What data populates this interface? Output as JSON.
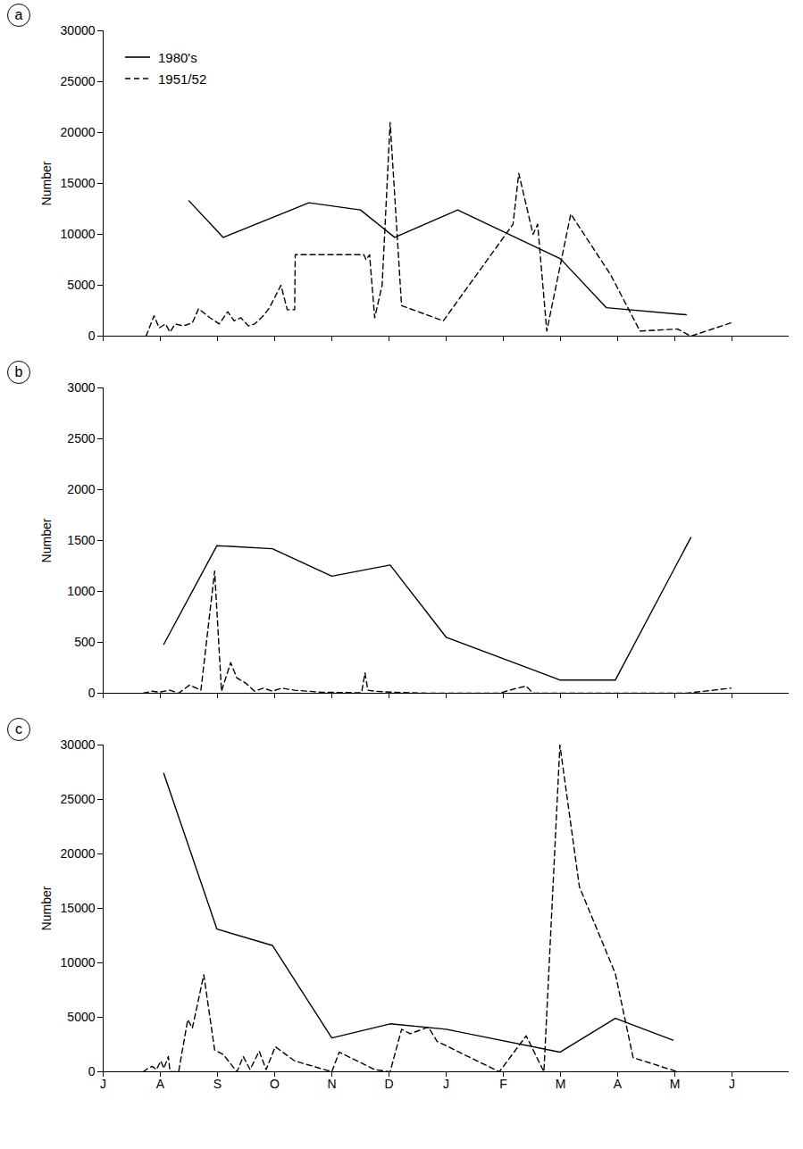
{
  "chart_data": [
    {
      "type": "line",
      "title": "a",
      "y_label": "Number",
      "legend": "upper left",
      "tick_labels": "y",
      "xlim": [
        0,
        12
      ],
      "xticks": [
        0,
        1,
        2,
        3,
        4,
        5,
        6,
        7,
        8,
        9,
        10,
        11
      ],
      "ylim": [
        0,
        30000
      ],
      "yticks": [
        0,
        5000,
        10000,
        15000,
        20000,
        25000,
        30000
      ],
      "series": [
        {
          "name": "1980's",
          "color": "#000000",
          "line_style": "solid",
          "x": [
            1.5,
            2.1,
            3.6,
            4.5,
            5.1,
            6.2,
            8.0,
            8.8,
            10.2
          ],
          "values": [
            13300,
            9700,
            13100,
            12400,
            9700,
            12400,
            7600,
            2800,
            2100
          ]
        },
        {
          "name": "1951/52",
          "color": "#000000",
          "line_style": "dashed",
          "x": [
            0.75,
            0.89,
            0.98,
            1.09,
            1.17,
            1.26,
            1.4,
            1.56,
            1.67,
            1.87,
            2.03,
            2.18,
            2.29,
            2.41,
            2.54,
            2.65,
            2.8,
            2.91,
            3.11,
            3.22,
            3.35,
            3.36,
            4.56,
            4.6,
            4.66,
            4.75,
            4.88,
            5.02,
            5.22,
            5.95,
            7.17,
            7.27,
            7.52,
            7.6,
            7.76,
            7.87,
            8.18,
            8.88,
            9.39,
            10.05,
            10.28,
            10.98
          ],
          "values": [
            0,
            2000,
            800,
            1200,
            400,
            1200,
            1000,
            1300,
            2700,
            1800,
            1200,
            2400,
            1500,
            1800,
            1000,
            1200,
            2000,
            2800,
            5000,
            2600,
            2600,
            8000,
            8000,
            7500,
            8000,
            1800,
            5000,
            21000,
            3000,
            1500,
            11000,
            16000,
            10000,
            11000,
            500,
            3500,
            12000,
            6000,
            500,
            700,
            0,
            1300
          ]
        }
      ]
    },
    {
      "type": "line",
      "title": "b",
      "y_label": "Number",
      "tick_labels": "y",
      "xlim": [
        0,
        12
      ],
      "xticks": [
        0,
        1,
        2,
        3,
        4,
        5,
        6,
        7,
        8,
        9,
        10,
        11
      ],
      "ylim": [
        0,
        3000
      ],
      "yticks": [
        0,
        500,
        1000,
        1500,
        2000,
        2500,
        3000
      ],
      "series": [
        {
          "name": "1980's",
          "color": "#000000",
          "line_style": "solid",
          "x": [
            1.06,
            1.99,
            2.96,
            4.0,
            5.02,
            6.0,
            7.99,
            8.96,
            10.28
          ],
          "values": [
            480,
            1450,
            1420,
            1150,
            1260,
            550,
            130,
            130,
            1530
          ]
        },
        {
          "name": "1951/52",
          "color": "#000000",
          "line_style": "dashed",
          "x": [
            0.7,
            0.86,
            0.98,
            1.17,
            1.32,
            1.51,
            1.71,
            1.95,
            2.07,
            2.23,
            2.34,
            2.49,
            2.65,
            2.8,
            2.96,
            3.12,
            3.35,
            3.82,
            4.52,
            4.58,
            4.63,
            4.75,
            5.06,
            5.69,
            6.93,
            7.24,
            7.4,
            7.52,
            10.2,
            10.67,
            10.98
          ],
          "values": [
            0,
            20,
            10,
            30,
            0,
            80,
            30,
            1200,
            20,
            300,
            150,
            100,
            20,
            50,
            20,
            50,
            30,
            10,
            5,
            200,
            30,
            20,
            10,
            0,
            0,
            50,
            70,
            0,
            0,
            30,
            50
          ]
        }
      ]
    },
    {
      "type": "line",
      "title": "c",
      "y_label": "Number",
      "xlim": [
        0,
        12
      ],
      "xticks": [
        {
          "value": 0,
          "label": "J"
        },
        {
          "value": 1,
          "label": "A"
        },
        {
          "value": 2,
          "label": "S"
        },
        {
          "value": 3,
          "label": "O"
        },
        {
          "value": 4,
          "label": "N"
        },
        {
          "value": 5,
          "label": "D"
        },
        {
          "value": 6,
          "label": "J"
        },
        {
          "value": 7,
          "label": "F"
        },
        {
          "value": 8,
          "label": "M"
        },
        {
          "value": 9,
          "label": "A"
        },
        {
          "value": 10,
          "label": "M"
        },
        {
          "value": 11,
          "label": "J"
        }
      ],
      "ylim": [
        0,
        30000
      ],
      "yticks": [
        0,
        5000,
        10000,
        15000,
        20000,
        25000,
        30000
      ],
      "series": [
        {
          "name": "1980's",
          "color": "#000000",
          "line_style": "solid",
          "x": [
            1.06,
            1.99,
            2.96,
            4.0,
            5.02,
            6.0,
            7.99,
            8.96,
            9.97
          ],
          "values": [
            27400,
            13100,
            11600,
            3100,
            4400,
            3900,
            1800,
            4900,
            2900
          ]
        },
        {
          "name": "1951/52",
          "color": "#000000",
          "line_style": "dashed",
          "x": [
            0.7,
            0.78,
            0.86,
            0.93,
            1.01,
            1.06,
            1.14,
            1.17,
            1.32,
            1.48,
            1.56,
            1.76,
            1.95,
            2.1,
            2.34,
            2.45,
            2.57,
            2.73,
            2.85,
            3.01,
            3.35,
            4.0,
            4.13,
            4.75,
            5.02,
            5.22,
            5.37,
            5.69,
            5.84,
            6.93,
            7.4,
            7.71,
            7.99,
            8.33,
            8.96,
            9.27,
            10.05
          ],
          "values": [
            0,
            300,
            500,
            200,
            1000,
            300,
            1400,
            0,
            0,
            4800,
            4000,
            8900,
            2000,
            1600,
            0,
            1400,
            200,
            1900,
            200,
            2300,
            1000,
            0,
            1800,
            200,
            0,
            3900,
            3500,
            4100,
            2800,
            0,
            3300,
            0,
            30000,
            17000,
            9000,
            1300,
            0
          ]
        }
      ]
    }
  ]
}
